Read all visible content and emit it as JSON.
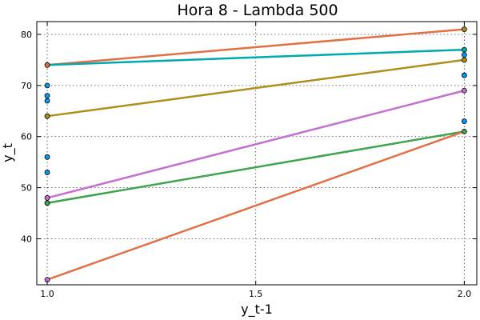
{
  "chart_data": {
    "type": "line",
    "title": "Hora 8 - Lambda 500",
    "xlabel": "y_t-1",
    "ylabel": "y_t",
    "xlim": [
      0.975,
      2.03
    ],
    "ylim": [
      31,
      82.5
    ],
    "xticks": [
      1.0,
      1.5,
      2.0
    ],
    "xtick_labels": [
      "1.0",
      "1.5",
      "2.0"
    ],
    "yticks": [
      40,
      50,
      60,
      70,
      80
    ],
    "ytick_labels": [
      "40",
      "50",
      "60",
      "70",
      "80"
    ],
    "grid": true,
    "legend": "none",
    "series": [
      {
        "color": "#e26f46",
        "x": [
          1,
          2
        ],
        "y": [
          74,
          81
        ]
      },
      {
        "color": "#00a9ad",
        "x": [
          1,
          2
        ],
        "y": [
          74,
          77
        ]
      },
      {
        "color": "#ad8f1a",
        "x": [
          1,
          2
        ],
        "y": [
          64,
          75
        ]
      },
      {
        "color": "#c56fd4",
        "x": [
          1,
          2
        ],
        "y": [
          48,
          69
        ]
      },
      {
        "color": "#3ea44e",
        "x": [
          1,
          2
        ],
        "y": [
          47,
          61
        ]
      },
      {
        "color": "#e26f46",
        "x": [
          1,
          2
        ],
        "y": [
          32,
          61
        ]
      }
    ],
    "points": [
      {
        "x": 1,
        "y": 74,
        "color": "#e26f46"
      },
      {
        "x": 1,
        "y": 70,
        "color": "#009af9"
      },
      {
        "x": 1,
        "y": 68,
        "color": "#009af9"
      },
      {
        "x": 1,
        "y": 67,
        "color": "#009af9"
      },
      {
        "x": 1,
        "y": 64,
        "color": "#ad8f1a"
      },
      {
        "x": 1,
        "y": 56,
        "color": "#009af9"
      },
      {
        "x": 1,
        "y": 53,
        "color": "#009af9"
      },
      {
        "x": 1,
        "y": 48,
        "color": "#c56fd4"
      },
      {
        "x": 1,
        "y": 47,
        "color": "#3ea44e"
      },
      {
        "x": 1,
        "y": 32,
        "color": "#c56fd4"
      },
      {
        "x": 2,
        "y": 81,
        "color": "#ad8f1a"
      },
      {
        "x": 2,
        "y": 77,
        "color": "#00a9ad"
      },
      {
        "x": 2,
        "y": 76,
        "color": "#009af9"
      },
      {
        "x": 2,
        "y": 75,
        "color": "#ad8f1a"
      },
      {
        "x": 2,
        "y": 72,
        "color": "#009af9"
      },
      {
        "x": 2,
        "y": 69,
        "color": "#c56fd4"
      },
      {
        "x": 2,
        "y": 63,
        "color": "#009af9"
      },
      {
        "x": 2,
        "y": 61,
        "color": "#3ea44e"
      }
    ]
  }
}
